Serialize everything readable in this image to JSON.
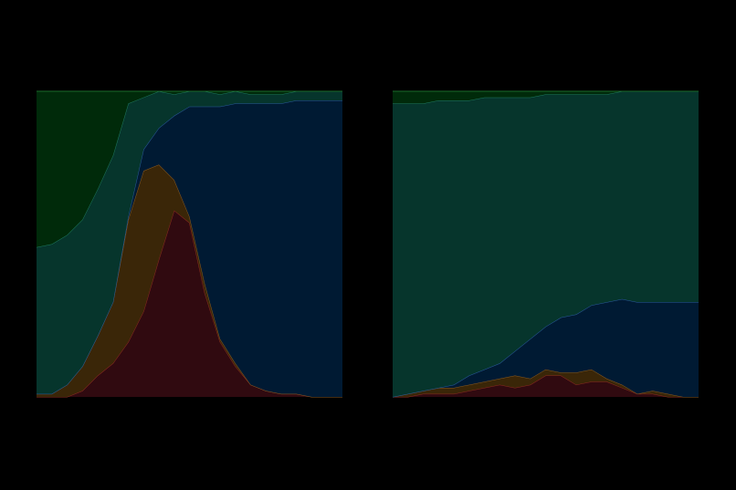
{
  "chart_data": [
    {
      "type": "area",
      "stacked": true,
      "ylim": [
        0,
        1
      ],
      "series": [
        {
          "color": "#300a10",
          "edge": "#8a2a22",
          "values": [
            0,
            0,
            0,
            0.02,
            0.07,
            0.11,
            0.18,
            0.28,
            0.45,
            0.61,
            0.57,
            0.34,
            0.18,
            0.1,
            0.04,
            0.02,
            0.01,
            0.01,
            0,
            0,
            0
          ]
        },
        {
          "color": "#3a2608",
          "edge": "#8a5a20",
          "values": [
            0.01,
            0.01,
            0.04,
            0.08,
            0.13,
            0.2,
            0.4,
            0.46,
            0.31,
            0.1,
            0.02,
            0.03,
            0.01,
            0.01,
            0,
            0,
            0,
            0,
            0,
            0,
            0
          ]
        },
        {
          "color": "#001a33",
          "edge": "#2a5a9a",
          "values": [
            0,
            0,
            0,
            0,
            0,
            0,
            0.01,
            0.07,
            0.12,
            0.21,
            0.36,
            0.58,
            0.76,
            0.85,
            0.92,
            0.94,
            0.95,
            0.96,
            0.97,
            0.97,
            0.97
          ]
        },
        {
          "color": "#06352c",
          "edge": "#1f7a60",
          "values": [
            0.48,
            0.49,
            0.49,
            0.48,
            0.48,
            0.48,
            0.37,
            0.17,
            0.12,
            0.07,
            0.05,
            0.05,
            0.04,
            0.04,
            0.03,
            0.03,
            0.03,
            0.03,
            0.03,
            0.03,
            0.03
          ]
        },
        {
          "color": "#002a0a",
          "edge": "#1a6a2a",
          "values": [
            0.51,
            0.5,
            0.47,
            0.42,
            0.32,
            0.21,
            0.04,
            0.02,
            0,
            0.01,
            0,
            0,
            0.01,
            0,
            0.01,
            0.01,
            0.01,
            0,
            0,
            0,
            0
          ]
        }
      ]
    },
    {
      "type": "area",
      "stacked": true,
      "ylim": [
        0,
        1
      ],
      "series": [
        {
          "color": "#300a10",
          "edge": "#8a2a22",
          "values": [
            0,
            0,
            0.01,
            0.01,
            0.01,
            0.02,
            0.03,
            0.04,
            0.03,
            0.04,
            0.07,
            0.07,
            0.04,
            0.05,
            0.05,
            0.03,
            0.01,
            0.01,
            0,
            0,
            0
          ]
        },
        {
          "color": "#3a2608",
          "edge": "#8a5a20",
          "values": [
            0,
            0.01,
            0.01,
            0.02,
            0.02,
            0.02,
            0.02,
            0.02,
            0.04,
            0.02,
            0.02,
            0.01,
            0.04,
            0.04,
            0.01,
            0.01,
            0,
            0.01,
            0.01,
            0,
            0
          ]
        },
        {
          "color": "#001a33",
          "edge": "#2a5a9a",
          "values": [
            0,
            0,
            0,
            0,
            0.01,
            0.03,
            0.04,
            0.05,
            0.08,
            0.13,
            0.14,
            0.18,
            0.19,
            0.21,
            0.25,
            0.28,
            0.3,
            0.29,
            0.3,
            0.31,
            0.31
          ]
        },
        {
          "color": "#06352c",
          "edge": "#1f7a60",
          "values": [
            0.96,
            0.95,
            0.94,
            0.94,
            0.93,
            0.9,
            0.89,
            0.87,
            0.83,
            0.79,
            0.76,
            0.73,
            0.72,
            0.69,
            0.68,
            0.68,
            0.69,
            0.69,
            0.69,
            0.69,
            0.69
          ]
        },
        {
          "color": "#002a0a",
          "edge": "#1a6a2a",
          "values": [
            0.04,
            0.04,
            0.04,
            0.03,
            0.03,
            0.03,
            0.02,
            0.02,
            0.02,
            0.02,
            0.01,
            0.01,
            0.01,
            0.01,
            0.01,
            0,
            0,
            0,
            0,
            0,
            0
          ]
        }
      ]
    }
  ]
}
